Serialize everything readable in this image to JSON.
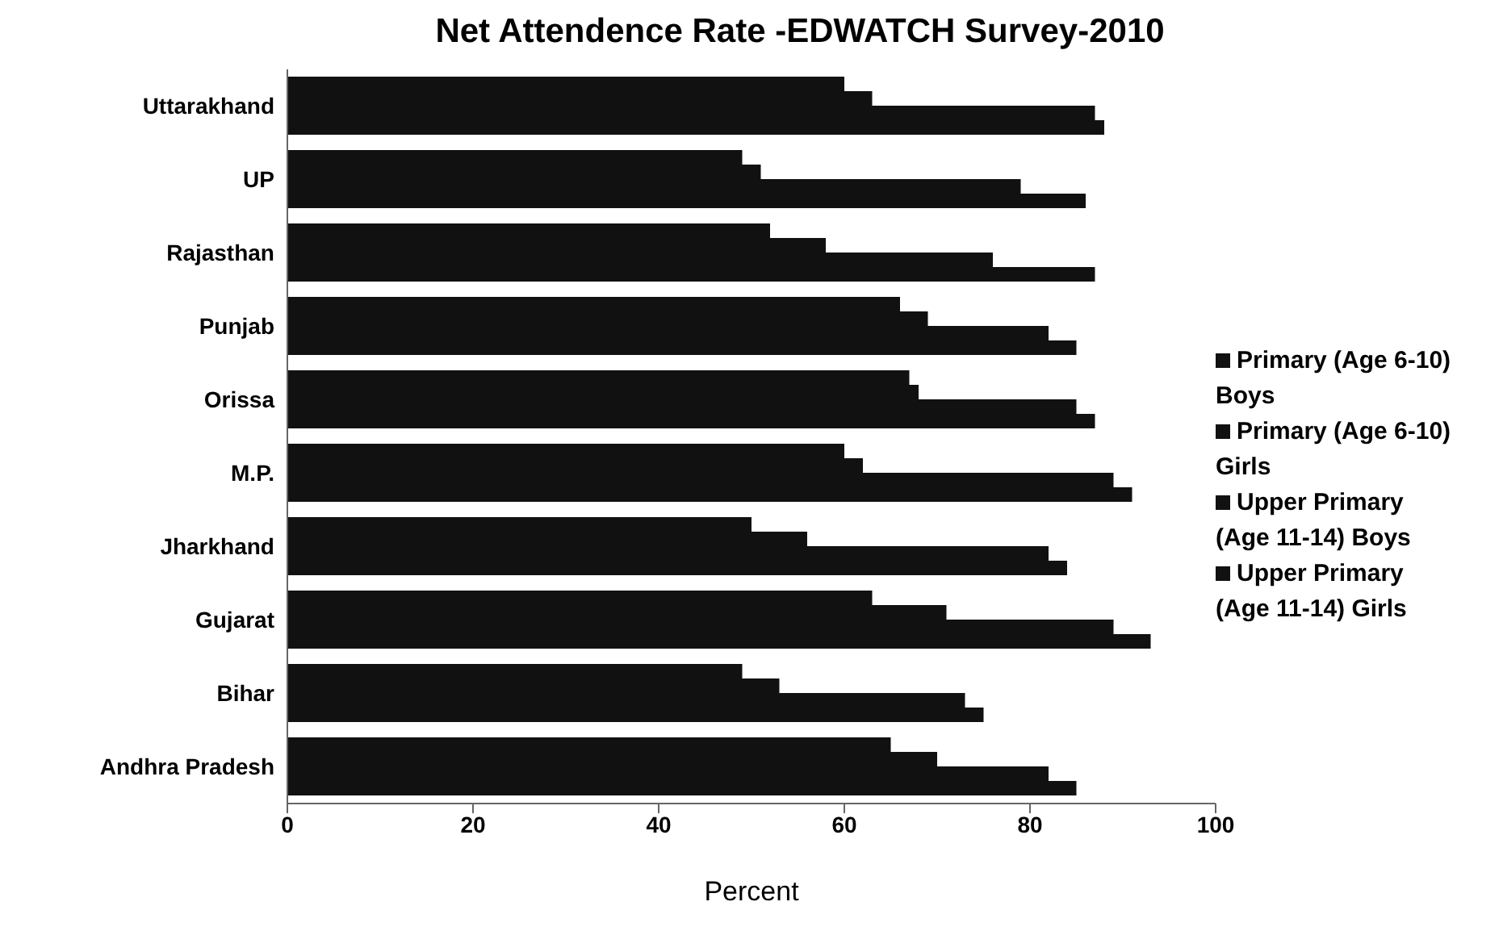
{
  "chart_data": {
    "type": "bar",
    "orientation": "horizontal",
    "title": "Net Attendence Rate -EDWATCH Survey-2010",
    "xlabel": "Percent",
    "categories": [
      "Uttarakhand",
      "UP",
      "Rajasthan",
      "Punjab",
      "Orissa",
      "M.P.",
      "Jharkhand",
      "Gujarat",
      "Bihar",
      "Andhra Pradesh"
    ],
    "series": [
      {
        "name": "Upper Primary (Age 11-14) Girls",
        "color": "#111111",
        "values": [
          60,
          49,
          52,
          66,
          67,
          60,
          50,
          63,
          49,
          65
        ]
      },
      {
        "name": "Upper Primary (Age 11-14) Boys",
        "color": "#111111",
        "values": [
          63,
          51,
          58,
          69,
          68,
          62,
          56,
          71,
          53,
          70
        ]
      },
      {
        "name": "Primary (Age 6-10) Girls",
        "color": "#111111",
        "values": [
          87,
          79,
          76,
          82,
          85,
          89,
          82,
          89,
          73,
          82
        ]
      },
      {
        "name": "Primary (Age 6-10) Boys",
        "color": "#111111",
        "values": [
          88,
          86,
          87,
          85,
          87,
          91,
          84,
          93,
          75,
          85
        ]
      }
    ],
    "xlim": [
      0,
      100
    ],
    "xticks": [
      0,
      20,
      40,
      60,
      80,
      100
    ],
    "legend": "right"
  }
}
